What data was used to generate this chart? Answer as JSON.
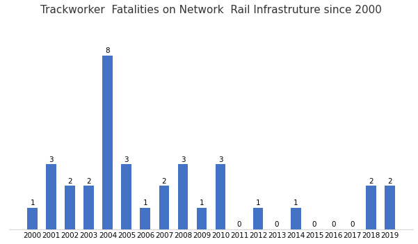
{
  "title": "Trackworker  Fatalities on Network  Rail Infrastruture since 2000",
  "years": [
    2000,
    2001,
    2002,
    2003,
    2004,
    2005,
    2006,
    2007,
    2008,
    2009,
    2010,
    2011,
    2012,
    2013,
    2014,
    2015,
    2016,
    2017,
    2018,
    2019
  ],
  "values": [
    1,
    3,
    2,
    2,
    8,
    3,
    1,
    2,
    3,
    1,
    3,
    0,
    1,
    0,
    1,
    0,
    0,
    0,
    2,
    2
  ],
  "bar_color": "#4472C4",
  "ylim": [
    0,
    9.5
  ],
  "title_fontsize": 11,
  "label_fontsize": 7.5,
  "tick_fontsize": 7.5,
  "background_color": "#ffffff",
  "grid_color": "#d8d8d8",
  "bar_width": 0.55
}
